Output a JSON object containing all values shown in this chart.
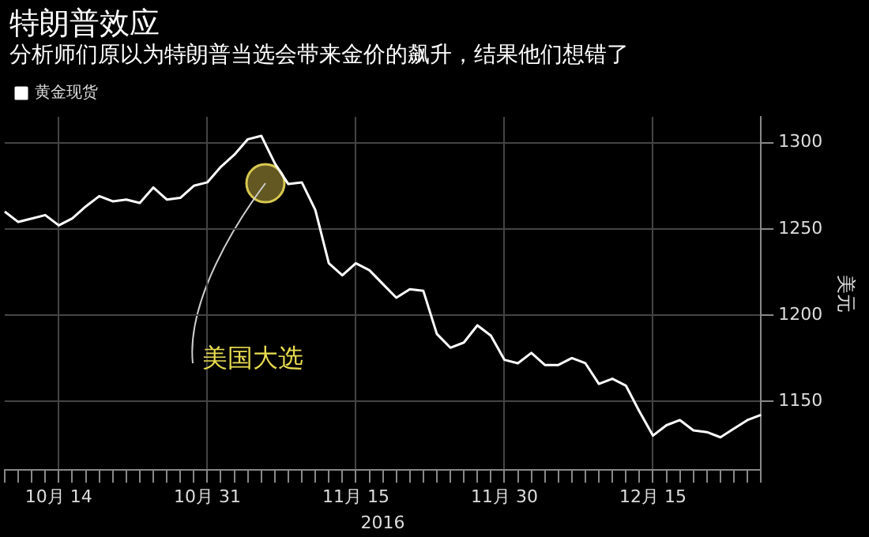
{
  "chart_data": {
    "type": "line",
    "title": "特朗普效应",
    "subtitle": "分析师们原以为特朗普当选会带来金价的飙升，结果他们想错了",
    "xlabel": "2016",
    "ylabel": "美元",
    "categories": [
      null,
      null,
      null,
      null,
      "10月 14",
      null,
      null,
      null,
      null,
      null,
      null,
      null,
      null,
      null,
      null,
      "10月 31",
      null,
      null,
      null,
      null,
      null,
      null,
      null,
      null,
      null,
      null,
      "11月 15",
      null,
      null,
      null,
      null,
      null,
      null,
      null,
      null,
      null,
      null,
      "11月 30",
      null,
      null,
      null,
      null,
      null,
      null,
      null,
      null,
      null,
      null,
      "12月 15",
      null,
      null,
      null,
      null,
      null,
      null,
      null,
      null
    ],
    "series": [
      {
        "name": "黄金现货",
        "color": "#ffffff",
        "values": [
          1260,
          1254,
          1256,
          1258,
          1252,
          1256,
          1263,
          1269,
          1266,
          1267,
          1265,
          1274,
          1267,
          1268,
          1275,
          1277,
          1286,
          1293,
          1302,
          1304,
          1288,
          1276,
          1277,
          1261,
          1230,
          1223,
          1230,
          1226,
          1218,
          1210,
          1215,
          1214,
          1189,
          1181,
          1184,
          1194,
          1188,
          1174,
          1172,
          1178,
          1171,
          1171,
          1175,
          1172,
          1160,
          1163,
          1159,
          1144,
          1130,
          1136,
          1139,
          1133,
          1132,
          1129,
          1134,
          1139,
          1142
        ]
      }
    ],
    "ylim": [
      1110,
      1315
    ],
    "yticks": [
      1150,
      1200,
      1250,
      1300
    ],
    "grid": true,
    "legend": "top left",
    "marker": "none",
    "line_style": "solid",
    "annotations": [
      "美国大选"
    ]
  }
}
